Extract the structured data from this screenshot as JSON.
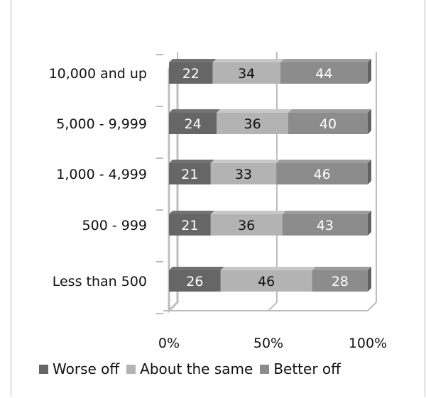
{
  "chart_data": {
    "type": "bar",
    "orientation": "horizontal",
    "stacked": "percent",
    "categories": [
      "10,000 and up",
      "5,000 - 9,999",
      "1,000 - 4,999",
      "500 - 999",
      "Less than 500"
    ],
    "series": [
      {
        "name": "Worse off",
        "values": [
          22,
          24,
          21,
          21,
          26
        ],
        "color": "#666666"
      },
      {
        "name": "About the same",
        "values": [
          34,
          36,
          33,
          36,
          46
        ],
        "color": "#b3b3b3"
      },
      {
        "name": "Better off",
        "values": [
          44,
          40,
          46,
          43,
          28
        ],
        "color": "#8c8c8c"
      }
    ],
    "xlim": [
      0,
      100
    ],
    "x_ticks": [
      "0%",
      "50%",
      "100%"
    ],
    "grid": true,
    "legend_position": "bottom",
    "label_colors": {
      "dark": "#ffffff",
      "light": "#111111"
    }
  }
}
